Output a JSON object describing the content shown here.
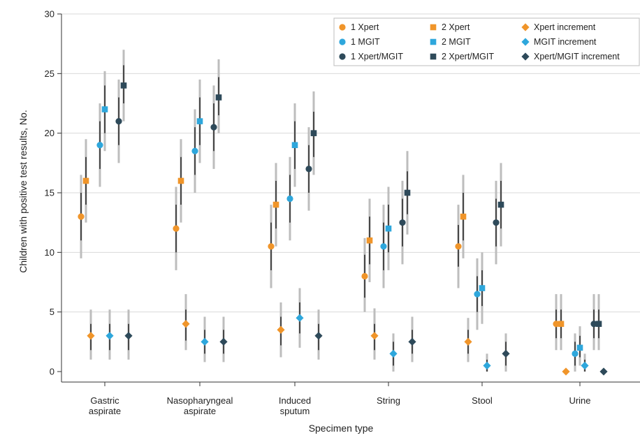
{
  "chart_data": {
    "type": "scatter",
    "xlabel": "Specimen type",
    "ylabel": "Children with positive test results, No.",
    "ylim": [
      0,
      30
    ],
    "yticks": [
      0,
      5,
      10,
      15,
      20,
      25,
      30
    ],
    "grid": "horizontal",
    "legend_position": "top-right",
    "categories": [
      [
        "Gastric",
        "aspirate"
      ],
      [
        "Nasopharyngeal",
        "aspirate"
      ],
      [
        "Induced",
        "sputum"
      ],
      [
        "String"
      ],
      [
        "Stool"
      ],
      [
        "Urine"
      ]
    ],
    "colors": {
      "orange": "#f0952a",
      "lightblue": "#2ea7dc",
      "navy": "#2e4a5a",
      "interval_light": "#bdbdbd",
      "interval_dark": "#3a3a3a",
      "grid": "#d9d9d9"
    },
    "series": [
      {
        "name": "1 Xpert",
        "marker": "circle",
        "color": "#f0952a",
        "values": [
          13,
          12,
          10.5,
          8,
          10.5,
          4
        ],
        "ci_outer": [
          [
            9.5,
            16.5
          ],
          [
            8.5,
            15.5
          ],
          [
            7,
            14
          ],
          [
            5,
            11.2
          ],
          [
            7,
            14
          ],
          [
            1.8,
            6.5
          ]
        ],
        "ci_inner": [
          [
            11,
            15
          ],
          [
            10,
            14
          ],
          [
            8.5,
            12.5
          ],
          [
            6.2,
            9.8
          ],
          [
            8.8,
            12.3
          ],
          [
            2.8,
            5.2
          ]
        ]
      },
      {
        "name": "2 Xpert",
        "marker": "square",
        "color": "#f0952a",
        "values": [
          16,
          16,
          14,
          11,
          13,
          4
        ],
        "ci_outer": [
          [
            12.5,
            19.5
          ],
          [
            12.5,
            19.5
          ],
          [
            10.5,
            17.5
          ],
          [
            7.5,
            14.5
          ],
          [
            9.5,
            16.5
          ],
          [
            1.8,
            6.5
          ]
        ],
        "ci_inner": [
          [
            14,
            18
          ],
          [
            14,
            18
          ],
          [
            12,
            16
          ],
          [
            9,
            13
          ],
          [
            11,
            15
          ],
          [
            2.8,
            5.2
          ]
        ]
      },
      {
        "name": "Xpert increment",
        "marker": "diamond",
        "color": "#f0952a",
        "values": [
          3,
          4,
          3.5,
          3,
          2.5,
          0
        ],
        "ci_outer": [
          [
            1,
            5.2
          ],
          [
            1.8,
            6.5
          ],
          [
            1.2,
            5.8
          ],
          [
            1,
            5.3
          ],
          [
            0.8,
            4.5
          ],
          [
            0,
            0
          ]
        ],
        "ci_inner": [
          [
            1.8,
            4
          ],
          [
            2.6,
            5.2
          ],
          [
            2.2,
            4.6
          ],
          [
            1.8,
            4
          ],
          [
            1.5,
            3.5
          ],
          [
            0,
            0
          ]
        ]
      },
      {
        "name": "1 MGIT",
        "marker": "circle",
        "color": "#2ea7dc",
        "values": [
          19,
          18.5,
          14.5,
          10.5,
          6.5,
          1.5
        ],
        "ci_outer": [
          [
            15.5,
            22.5
          ],
          [
            15,
            22
          ],
          [
            11,
            18
          ],
          [
            7,
            14
          ],
          [
            3.5,
            9.5
          ],
          [
            0,
            3.2
          ]
        ],
        "ci_inner": [
          [
            17,
            21
          ],
          [
            16.5,
            20.5
          ],
          [
            12.5,
            16.5
          ],
          [
            8.5,
            12.5
          ],
          [
            5,
            8
          ],
          [
            0.5,
            2.5
          ]
        ]
      },
      {
        "name": "2 MGIT",
        "marker": "square",
        "color": "#2ea7dc",
        "values": [
          22,
          21,
          19,
          12,
          7,
          2
        ],
        "ci_outer": [
          [
            18.5,
            25.2
          ],
          [
            17.5,
            24.5
          ],
          [
            15.5,
            22.5
          ],
          [
            8.5,
            15.5
          ],
          [
            4,
            10
          ],
          [
            0.5,
            3.8
          ]
        ],
        "ci_inner": [
          [
            20,
            24
          ],
          [
            19,
            23
          ],
          [
            17,
            21
          ],
          [
            10,
            14
          ],
          [
            5.5,
            8.5
          ],
          [
            1.2,
            3
          ]
        ]
      },
      {
        "name": "MGIT increment",
        "marker": "diamond",
        "color": "#2ea7dc",
        "values": [
          3,
          2.5,
          4.5,
          1.5,
          0.5,
          0.5
        ],
        "ci_outer": [
          [
            1,
            5.2
          ],
          [
            0.8,
            4.6
          ],
          [
            2,
            7
          ],
          [
            0,
            3.2
          ],
          [
            0,
            1.5
          ],
          [
            0,
            1.5
          ]
        ],
        "ci_inner": [
          [
            1.8,
            4
          ],
          [
            1.5,
            3.5
          ],
          [
            3.2,
            5.8
          ],
          [
            0.5,
            2.5
          ],
          [
            0,
            1
          ],
          [
            0,
            1
          ]
        ]
      },
      {
        "name": "1 Xpert/MGIT",
        "marker": "circle",
        "color": "#2e4a5a",
        "values": [
          21,
          20.5,
          17,
          12.5,
          12.5,
          4
        ],
        "ci_outer": [
          [
            17.5,
            24.5
          ],
          [
            17,
            24
          ],
          [
            13.5,
            20.5
          ],
          [
            9,
            16
          ],
          [
            9,
            16
          ],
          [
            1.8,
            6.5
          ]
        ],
        "ci_inner": [
          [
            19,
            23
          ],
          [
            18.5,
            22.5
          ],
          [
            15,
            19
          ],
          [
            10.5,
            14.5
          ],
          [
            10.5,
            14.5
          ],
          [
            2.8,
            5.2
          ]
        ]
      },
      {
        "name": "2 Xpert/MGIT",
        "marker": "square",
        "color": "#2e4a5a",
        "values": [
          24,
          23,
          20,
          15,
          14,
          4
        ],
        "ci_outer": [
          [
            21,
            27
          ],
          [
            20,
            26.2
          ],
          [
            16.5,
            23.5
          ],
          [
            11.5,
            18.5
          ],
          [
            10.5,
            17.5
          ],
          [
            1.8,
            6.5
          ]
        ],
        "ci_inner": [
          [
            22.5,
            25.7
          ],
          [
            21.5,
            24.7
          ],
          [
            18,
            21.8
          ],
          [
            13.2,
            16.8
          ],
          [
            12,
            16
          ],
          [
            2.8,
            5.2
          ]
        ]
      },
      {
        "name": "Xpert/MGIT increment",
        "marker": "diamond",
        "color": "#2e4a5a",
        "values": [
          3,
          2.5,
          3,
          2.5,
          1.5,
          0
        ],
        "ci_outer": [
          [
            1,
            5.2
          ],
          [
            0.8,
            4.6
          ],
          [
            1,
            5.2
          ],
          [
            0.8,
            4.6
          ],
          [
            0,
            3.2
          ],
          [
            0,
            0
          ]
        ],
        "ci_inner": [
          [
            1.8,
            4
          ],
          [
            1.5,
            3.5
          ],
          [
            1.8,
            4
          ],
          [
            1.5,
            3.5
          ],
          [
            0.5,
            2.5
          ],
          [
            0,
            0
          ]
        ]
      }
    ]
  }
}
